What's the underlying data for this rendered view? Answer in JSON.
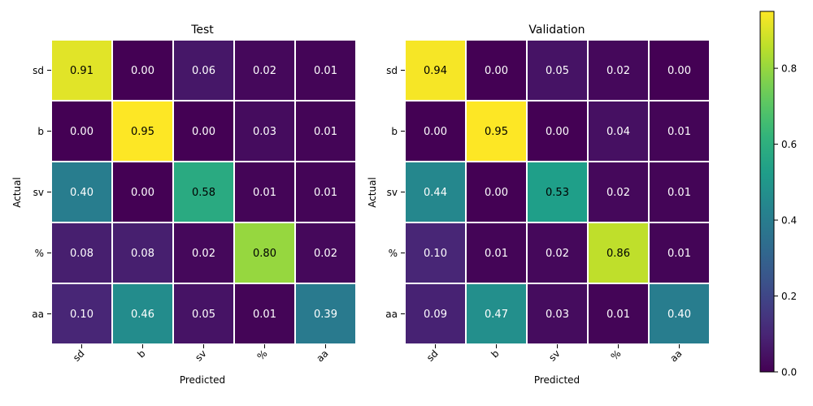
{
  "chart_data": [
    {
      "type": "heatmap",
      "title": "Test",
      "xlabel": "Predicted",
      "ylabel": "Actual",
      "x_categories": [
        "sd",
        "b",
        "sv",
        "%",
        "aa"
      ],
      "y_categories": [
        "sd",
        "b",
        "sv",
        "%",
        "aa"
      ],
      "values": [
        [
          0.91,
          0.0,
          0.06,
          0.02,
          0.01
        ],
        [
          0.0,
          0.95,
          0.0,
          0.03,
          0.01
        ],
        [
          0.4,
          0.0,
          0.58,
          0.01,
          0.01
        ],
        [
          0.08,
          0.08,
          0.02,
          0.8,
          0.02
        ],
        [
          0.1,
          0.46,
          0.05,
          0.01,
          0.39
        ]
      ]
    },
    {
      "type": "heatmap",
      "title": "Validation",
      "xlabel": "Predicted",
      "ylabel": "Actual",
      "x_categories": [
        "sd",
        "b",
        "sv",
        "%",
        "aa"
      ],
      "y_categories": [
        "sd",
        "b",
        "sv",
        "%",
        "aa"
      ],
      "values": [
        [
          0.94,
          0.0,
          0.05,
          0.02,
          0.0
        ],
        [
          0.0,
          0.95,
          0.0,
          0.04,
          0.01
        ],
        [
          0.44,
          0.0,
          0.53,
          0.02,
          0.01
        ],
        [
          0.1,
          0.01,
          0.02,
          0.86,
          0.01
        ],
        [
          0.09,
          0.47,
          0.03,
          0.01,
          0.4
        ]
      ]
    }
  ],
  "colorbar": {
    "colormap": "viridis",
    "range": [
      0.0,
      0.95
    ],
    "ticks": [
      0.0,
      0.2,
      0.4,
      0.6,
      0.8
    ],
    "tick_labels": [
      "0.0",
      "0.2",
      "0.4",
      "0.6",
      "0.8"
    ]
  }
}
